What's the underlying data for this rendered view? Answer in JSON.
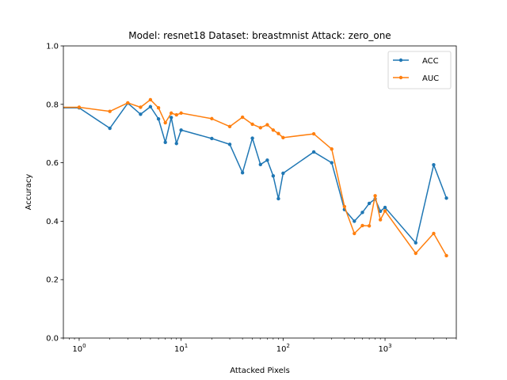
{
  "chart_data": {
    "type": "line",
    "title": "Model: resnet18 Dataset: breastmnist Attack: zero_one",
    "xlabel": "Attacked Pixels",
    "ylabel": "Accuracy",
    "xscale": "log",
    "xlim": [
      0.7,
      5000
    ],
    "ylim": [
      0.0,
      1.0
    ],
    "xticks_major": [
      {
        "value": 1,
        "base": "10",
        "exp": "0"
      },
      {
        "value": 10,
        "base": "10",
        "exp": "1"
      },
      {
        "value": 100,
        "base": "10",
        "exp": "2"
      },
      {
        "value": 1000,
        "base": "10",
        "exp": "3"
      }
    ],
    "yticks": [
      "0.0",
      "0.2",
      "0.4",
      "0.6",
      "0.8",
      "1.0"
    ],
    "grid": false,
    "legend_position": "top-right",
    "x": [
      0.5,
      1,
      2,
      3,
      4,
      5,
      6,
      7,
      8,
      9,
      10,
      20,
      30,
      40,
      50,
      60,
      70,
      80,
      90,
      100,
      200,
      300,
      400,
      500,
      600,
      700,
      800,
      900,
      1000,
      2000,
      3000,
      4000
    ],
    "series": [
      {
        "name": "ACC",
        "color": "#1f77b4",
        "values": [
          0.788,
          0.788,
          0.718,
          0.804,
          0.766,
          0.792,
          0.75,
          0.67,
          0.755,
          0.666,
          0.712,
          0.683,
          0.663,
          0.566,
          0.684,
          0.594,
          0.609,
          0.555,
          0.477,
          0.564,
          0.637,
          0.6,
          0.44,
          0.4,
          0.43,
          0.461,
          0.476,
          0.434,
          0.447,
          0.326,
          0.593,
          0.479
        ]
      },
      {
        "name": "AUC",
        "color": "#ff7f0e",
        "values": [
          0.79,
          0.79,
          0.776,
          0.805,
          0.79,
          0.816,
          0.788,
          0.737,
          0.77,
          0.764,
          0.77,
          0.751,
          0.724,
          0.756,
          0.732,
          0.72,
          0.73,
          0.712,
          0.7,
          0.686,
          0.699,
          0.647,
          0.45,
          0.358,
          0.385,
          0.384,
          0.487,
          0.405,
          0.435,
          0.29,
          0.358,
          0.282
        ]
      }
    ]
  }
}
